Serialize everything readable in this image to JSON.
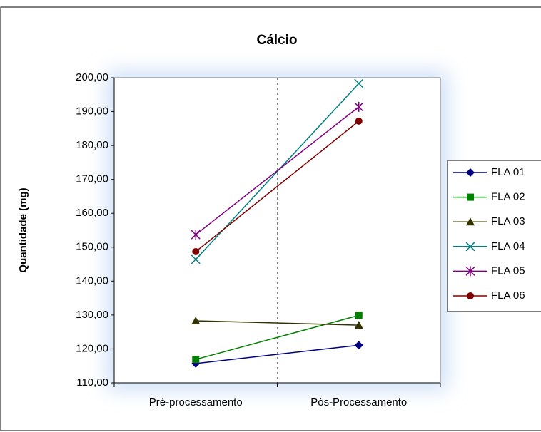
{
  "chart_data": {
    "type": "line",
    "title": "Cálcio",
    "y_label": "Quantidade (mg)",
    "categories": [
      "Pré-processamento",
      "Pós-Processamento"
    ],
    "series": [
      {
        "name": "FLA 01",
        "color": "#000080",
        "marker": "diamond",
        "values": [
          115.7,
          121.1
        ]
      },
      {
        "name": "FLA 02",
        "color": "#008000",
        "marker": "square",
        "values": [
          116.9,
          129.9
        ]
      },
      {
        "name": "FLA 03",
        "color": "#333300",
        "marker": "triangle",
        "values": [
          128.3,
          127.0
        ]
      },
      {
        "name": "FLA 04",
        "color": "#008080",
        "marker": "x",
        "values": [
          146.4,
          198.3
        ]
      },
      {
        "name": "FLA 05",
        "color": "#800080",
        "marker": "star",
        "values": [
          153.7,
          191.4
        ]
      },
      {
        "name": "FLA 06",
        "color": "#800000",
        "marker": "circle",
        "values": [
          148.7,
          187.2
        ]
      }
    ],
    "ylim": [
      110,
      200
    ],
    "yticks": [
      {
        "value": 110,
        "label": "110,00"
      },
      {
        "value": 120,
        "label": "120,00"
      },
      {
        "value": 130,
        "label": "130,00"
      },
      {
        "value": 140,
        "label": "140,00"
      },
      {
        "value": 150,
        "label": "150,00"
      },
      {
        "value": 160,
        "label": "160,00"
      },
      {
        "value": 170,
        "label": "170,00"
      },
      {
        "value": 180,
        "label": "180,00"
      },
      {
        "value": 190,
        "label": "190,00"
      },
      {
        "value": 200,
        "label": "200,00"
      }
    ],
    "legend": "right"
  }
}
